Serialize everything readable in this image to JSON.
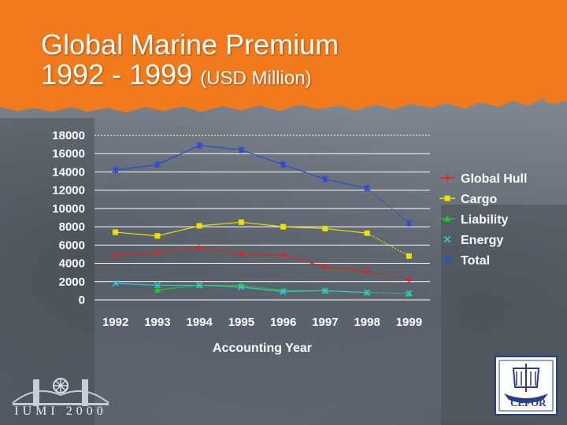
{
  "slide": {
    "title_line1": "Global Marine Premium",
    "title_line2": "1992 - 1999",
    "title_unit": "(USD Million)",
    "logo_left_text": "IUMI 2000",
    "logo_right_text": "CEFOR"
  },
  "colors": {
    "banner": "#f07a1c",
    "global_hull": "#e8201c",
    "cargo": "#f0e000",
    "liability": "#22c42c",
    "energy": "#36c4dc",
    "total": "#2a48d8",
    "grid": "#ffffff"
  },
  "chart_data": {
    "type": "line",
    "title": "",
    "xlabel": "Accounting Year",
    "ylabel": "",
    "categories": [
      "1992",
      "1993",
      "1994",
      "1995",
      "1996",
      "1997",
      "1998",
      "1999"
    ],
    "ylim": [
      0,
      18000
    ],
    "yticks": [
      "18000",
      "16000",
      "14000",
      "12000",
      "10000",
      "8000",
      "6000",
      "4000",
      "2000",
      "0"
    ],
    "legend_position": "right",
    "series": [
      {
        "name": "Global Hull",
        "values": [
          4900,
          5200,
          5700,
          5000,
          4900,
          3600,
          3100,
          2200
        ]
      },
      {
        "name": "Cargo",
        "values": [
          7400,
          7000,
          8100,
          8500,
          8000,
          7800,
          7300,
          4800
        ]
      },
      {
        "name": "Liability",
        "values": [
          null,
          1100,
          1600,
          1600,
          1000,
          1000,
          800,
          700
        ]
      },
      {
        "name": "Energy",
        "values": [
          1800,
          1600,
          1600,
          1400,
          900,
          1000,
          800,
          700
        ]
      },
      {
        "name": "Total",
        "values": [
          14200,
          14800,
          16900,
          16400,
          14800,
          13200,
          12200,
          8400
        ]
      }
    ]
  }
}
